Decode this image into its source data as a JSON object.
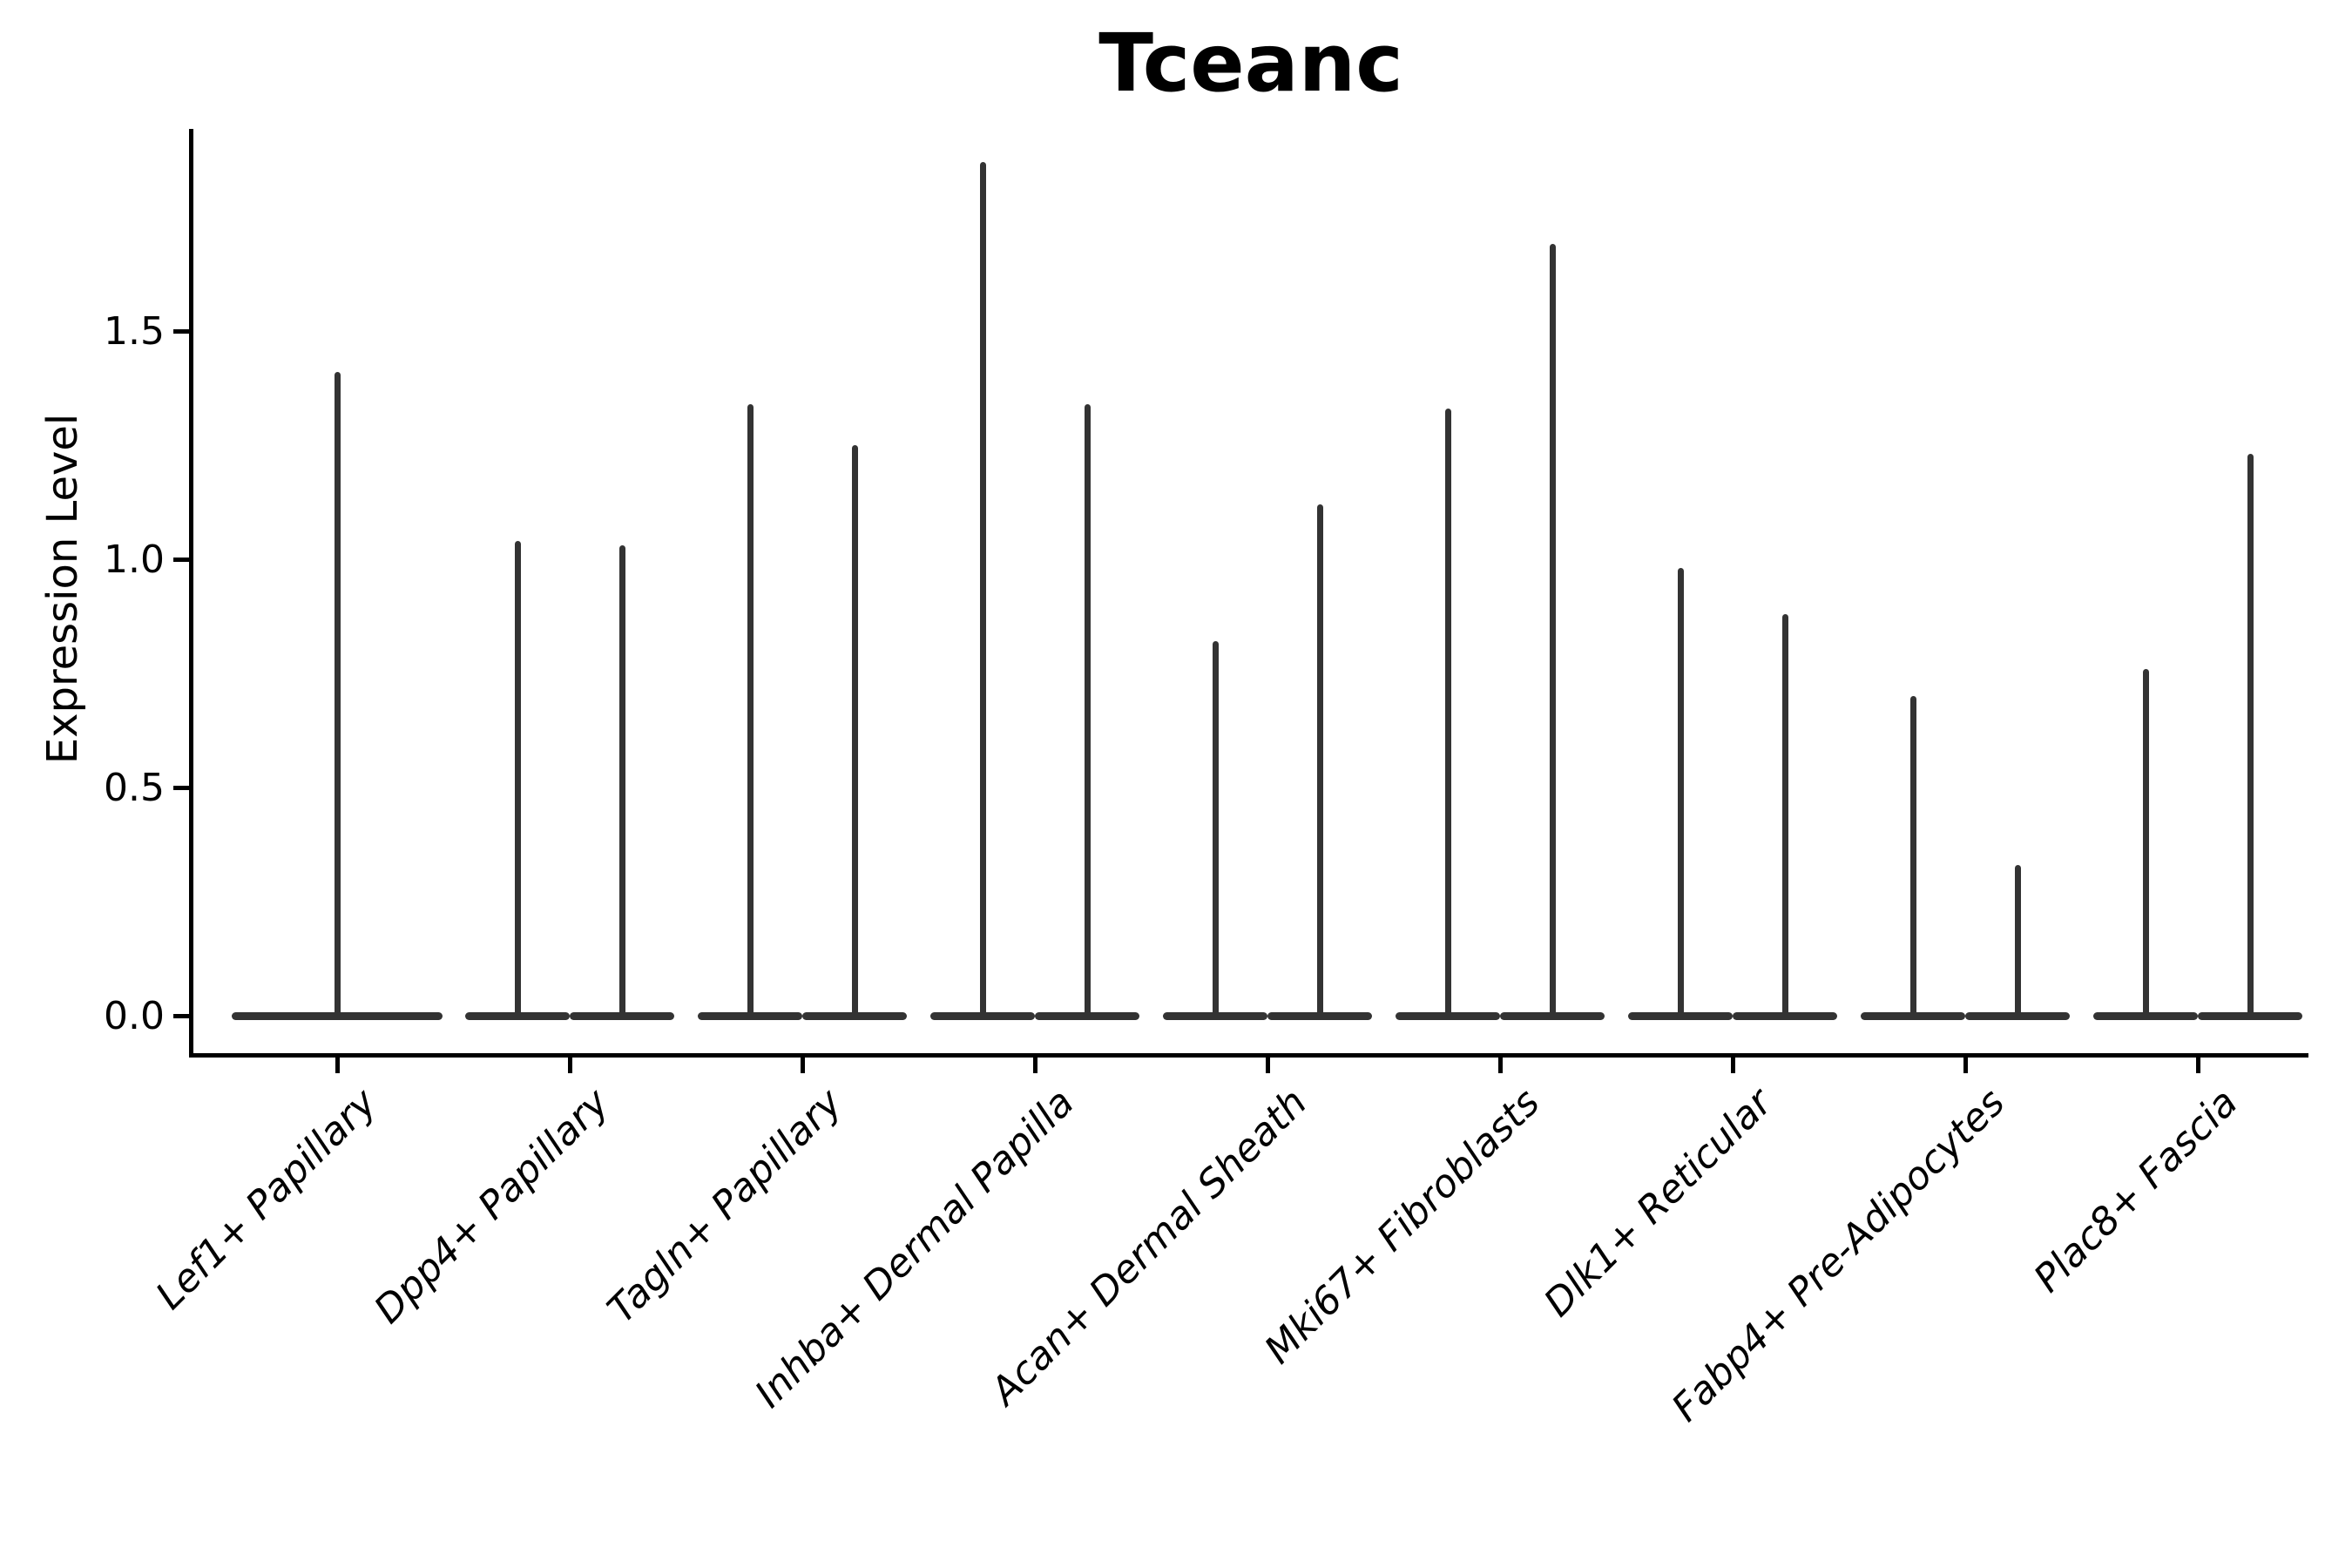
{
  "figure": {
    "title": "Tceanc",
    "ylabel": "Expression Level"
  },
  "chart_data": {
    "type": "violin",
    "title": "Tceanc",
    "xlabel": "",
    "ylabel": "Expression Level",
    "ylim": [
      0,
      1.95
    ],
    "grid": false,
    "legend": "none",
    "ytick_values": [
      0.0,
      0.5,
      1.0,
      1.5
    ],
    "ytick_labels": [
      "0.0",
      "0.5",
      "1.0",
      "1.5"
    ],
    "categories": [
      "Lef1+ Papillary",
      "Dpp4+ Papillary",
      "Tagln+ Papillary",
      "Inhba+ Dermal Papilla",
      "Acan+ Dermal Sheath",
      "Mki67+ Fibroblasts",
      "Dlk1+ Reticular",
      "Fabp4+ Pre-Adipocytes",
      "Plac8+ Fascia"
    ],
    "violins": [
      {
        "category": "Lef1+ Papillary",
        "peaks": [
          1.41
        ],
        "bulk_at": 0.0
      },
      {
        "category": "Dpp4+ Papillary",
        "peaks": [
          1.04,
          1.03
        ],
        "bulk_at": 0.0
      },
      {
        "category": "Tagln+ Papillary",
        "peaks": [
          1.34,
          1.25
        ],
        "bulk_at": 0.0
      },
      {
        "category": "Inhba+ Dermal Papilla",
        "peaks": [
          1.87,
          1.34
        ],
        "bulk_at": 0.0
      },
      {
        "category": "Acan+ Dermal Sheath",
        "peaks": [
          0.82,
          1.12
        ],
        "bulk_at": 0.0
      },
      {
        "category": "Mki67+ Fibroblasts",
        "peaks": [
          1.33,
          1.69
        ],
        "bulk_at": 0.0
      },
      {
        "category": "Dlk1+ Reticular",
        "peaks": [
          0.98,
          0.88
        ],
        "bulk_at": 0.0
      },
      {
        "category": "Fabp4+ Pre-Adipocytes",
        "peaks": [
          0.7,
          0.33
        ],
        "bulk_at": 0.0
      },
      {
        "category": "Plac8+ Fascia",
        "peaks": [
          0.76,
          1.23
        ],
        "bulk_at": 0.0
      }
    ]
  }
}
